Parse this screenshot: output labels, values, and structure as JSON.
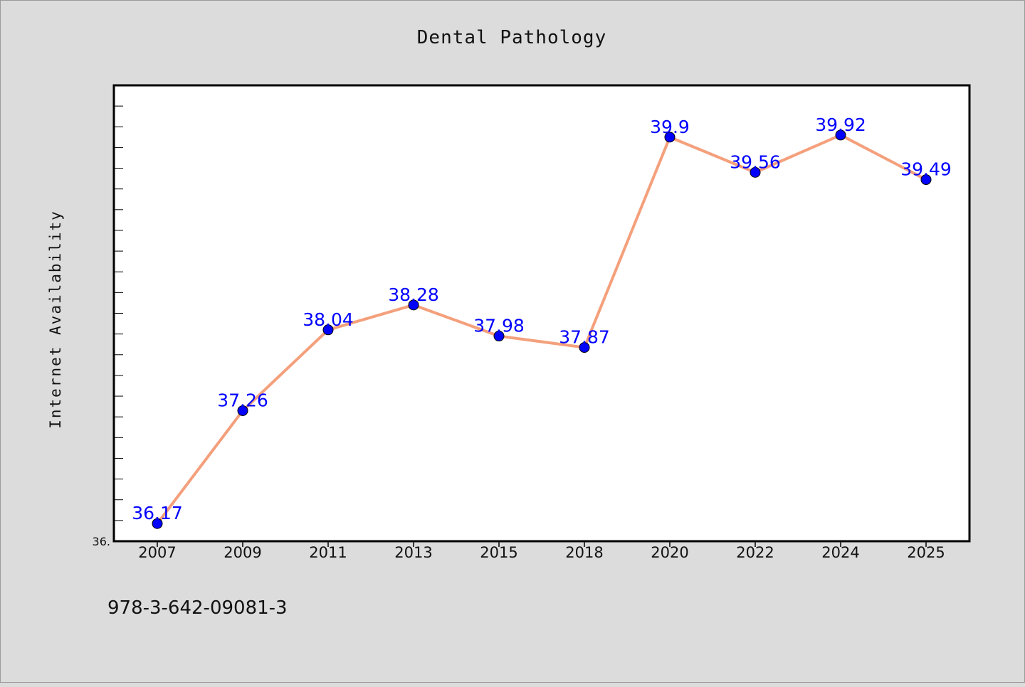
{
  "chart_data": {
    "type": "line",
    "title": "Dental Pathology",
    "xlabel": "",
    "ylabel": "Internet Availability",
    "categories": [
      "2007",
      "2009",
      "2011",
      "2013",
      "2015",
      "2018",
      "2020",
      "2022",
      "2024",
      "2025"
    ],
    "series": [
      {
        "values": [
          36.17,
          37.26,
          38.04,
          38.28,
          37.98,
          37.87,
          39.9,
          39.56,
          39.92,
          39.49
        ]
      }
    ],
    "data_labels": [
      "36.17",
      "37.26",
      "38.04",
      "38.28",
      "37.98",
      "37.87",
      "39.9",
      "39.56",
      "39.92",
      "39.49"
    ],
    "ylim": [
      36.0,
      40.4
    ],
    "ytick_label": "36.",
    "grid": false,
    "line_color": "#f4a07c",
    "marker_color": "#0000ff"
  },
  "caption": "978-3-642-09081-3"
}
